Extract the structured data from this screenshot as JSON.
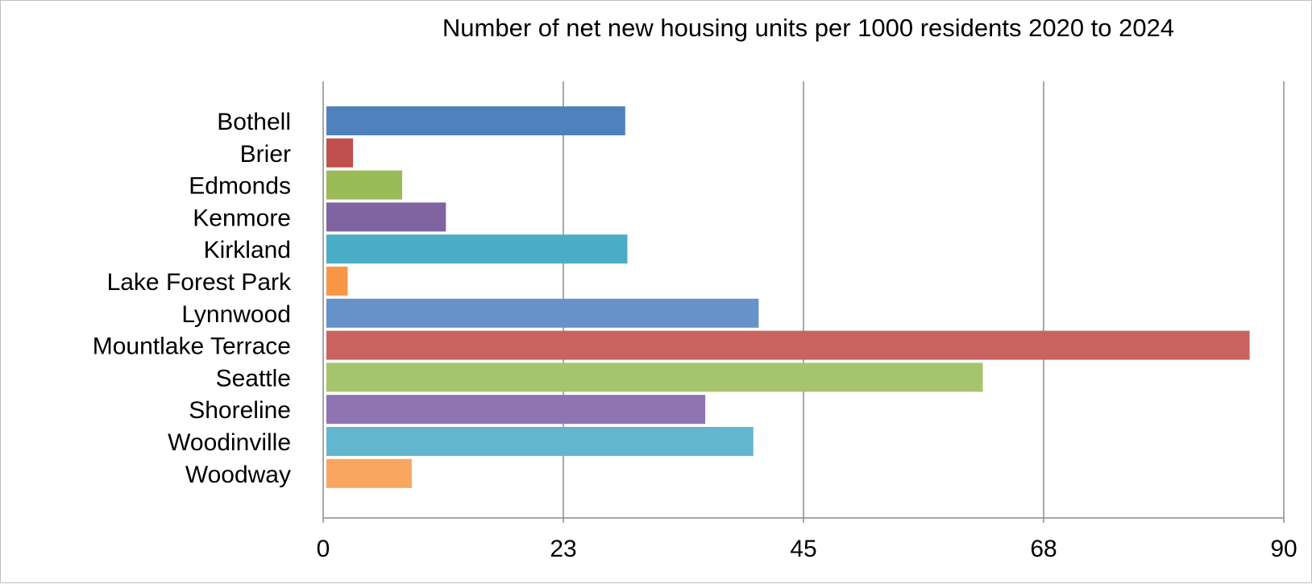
{
  "chart_data": {
    "type": "bar",
    "orientation": "horizontal",
    "title": "Number of net new housing units per 1000 residents 2020 to 2024",
    "xlabel": "",
    "ylabel": "",
    "categories": [
      "Bothell",
      "Brier",
      "Edmonds",
      "Kenmore",
      "Kirkland",
      "Lake Forest Park",
      "Lynnwood",
      "Mountlake Terrace",
      "Seattle",
      "Shoreline",
      "Woodinville",
      "Woodway"
    ],
    "values": [
      28.3,
      2.8,
      7.4,
      11.5,
      28.5,
      2.3,
      40.8,
      86.8,
      61.8,
      35.8,
      40.3,
      8.3
    ],
    "colors": [
      "#4f81bd",
      "#c0504d",
      "#9bbb59",
      "#8064a2",
      "#4bacc6",
      "#f79646",
      "#6592c8",
      "#c96360",
      "#a6c46d",
      "#8e74b0",
      "#62b6cf",
      "#f8a660"
    ],
    "xlim": [
      0,
      90
    ],
    "ticks": [
      0,
      22.5,
      45,
      67.5,
      90
    ],
    "tick_labels": [
      "0",
      "23",
      "45",
      "68",
      "90"
    ],
    "grid": true,
    "legend": "none"
  }
}
